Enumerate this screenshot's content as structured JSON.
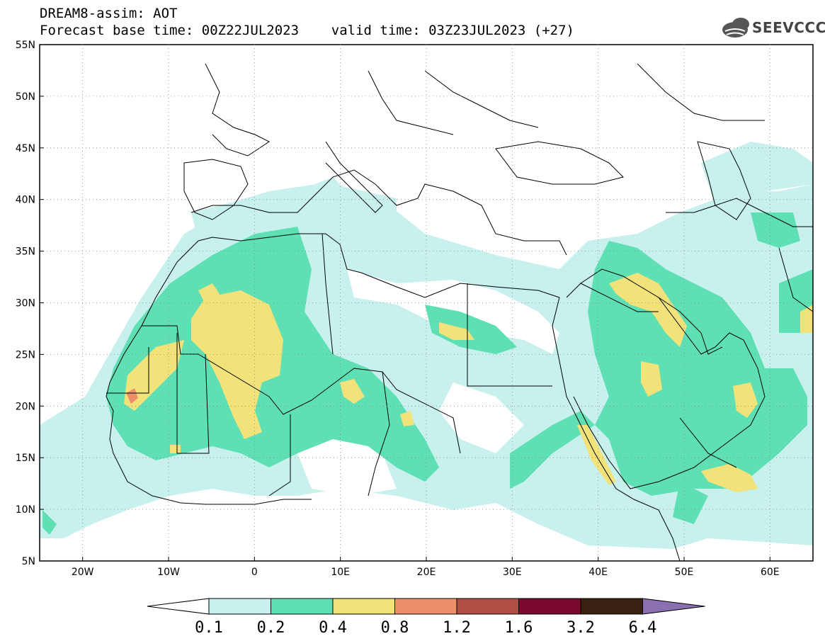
{
  "header": {
    "line1": "DREAM8-assim: AOT",
    "line2": "Forecast base time: 00Z22JUL2023    valid time: 03Z23JUL2023 (+27)"
  },
  "logo": {
    "text": "SEEVCCC",
    "icon": "cloud-icon"
  },
  "map": {
    "projection": "lat-lon",
    "lon_range": [
      -25,
      65
    ],
    "lat_range": [
      5,
      55
    ],
    "lat_ticks": [
      "55N",
      "50N",
      "45N",
      "40N",
      "35N",
      "30N",
      "25N",
      "20N",
      "15N",
      "10N",
      "5N"
    ],
    "lon_ticks": [
      "20W",
      "10W",
      "0",
      "10E",
      "20E",
      "30E",
      "40E",
      "50E",
      "60E"
    ],
    "field": "Aerosol optical thickness"
  },
  "colorbar": {
    "labels": [
      "0.1",
      "0.2",
      "0.4",
      "0.8",
      "1.2",
      "1.6",
      "3.2",
      "6.4"
    ],
    "colors": [
      "#c8f0ec",
      "#5ee0b4",
      "#f2e27a",
      "#ec906c",
      "#b04e44",
      "#7a0a2e",
      "#3a2010",
      "#8a70b0"
    ]
  },
  "colors": {
    "c1": "#c8f0ec",
    "c2": "#5ee0b4",
    "c3": "#f2e27a",
    "c4": "#ec906c",
    "coast": "#000000"
  }
}
